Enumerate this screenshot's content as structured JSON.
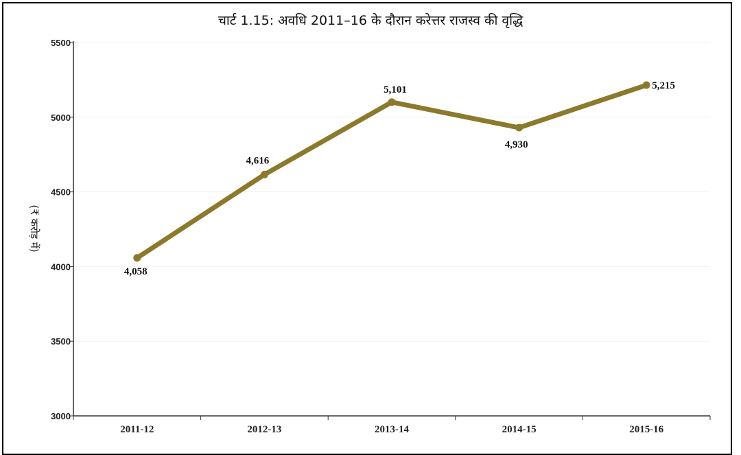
{
  "chart_data": {
    "type": "line",
    "title": "चार्ट 1.15: अवधि 2011–16 के दौरान करेत्तर राजस्व की वृद्धि",
    "xlabel": "",
    "ylabel": "(₹ करोड़ में)",
    "categories": [
      "2011-12",
      "2012-13",
      "2013-14",
      "2014-15",
      "2015-16"
    ],
    "series": [
      {
        "values": [
          4058,
          4616,
          5101,
          4930,
          5215
        ],
        "labels": [
          "4,058",
          "4,616",
          "5,101",
          "4,930",
          "5,215"
        ],
        "color": "#8b7a2b"
      }
    ],
    "yticks": [
      "3000",
      "3500",
      "4000",
      "4500",
      "5000",
      "5500"
    ],
    "ylim": [
      3000,
      5500
    ],
    "grid": true,
    "legend": "none"
  }
}
